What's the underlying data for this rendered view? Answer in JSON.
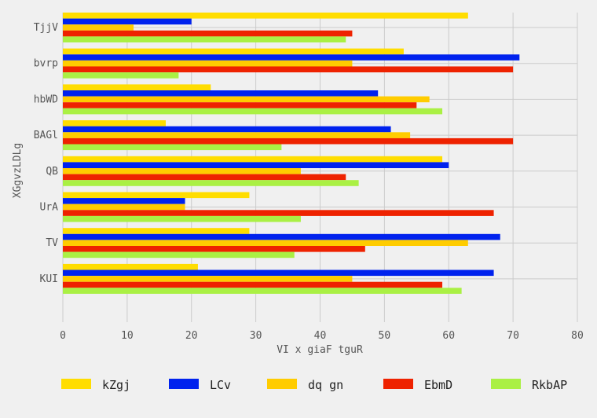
{
  "chart_data": {
    "type": "bar",
    "orientation": "horizontal",
    "categories": [
      "TjjV",
      "bvrp",
      "hbWD",
      "BAGl",
      "QB",
      "UrA",
      "TV",
      "KUI"
    ],
    "series": [
      {
        "name": "kZgj",
        "color": "#ffdd00",
        "values": [
          63,
          53,
          23,
          16,
          59,
          29,
          29,
          21
        ]
      },
      {
        "name": "LCv",
        "color": "#0022ee",
        "values": [
          20,
          71,
          49,
          51,
          60,
          19,
          68,
          67
        ]
      },
      {
        "name": "dq gn",
        "color": "#ffcc00",
        "values": [
          11,
          45,
          57,
          54,
          37,
          19,
          63,
          45
        ]
      },
      {
        "name": "EbmD",
        "color": "#ee2200",
        "values": [
          45,
          70,
          55,
          70,
          44,
          67,
          47,
          59
        ]
      },
      {
        "name": "RkbAP",
        "color": "#aaf044",
        "values": [
          44,
          18,
          59,
          34,
          46,
          37,
          36,
          62
        ]
      }
    ],
    "xlabel": "VI x giaF tguR",
    "ylabel": "XGgvzLDLg",
    "xlim": [
      0,
      80
    ],
    "xticks": [
      0,
      10,
      20,
      30,
      40,
      50,
      60,
      70,
      80
    ],
    "grid": true,
    "legend_position": "bottom"
  }
}
